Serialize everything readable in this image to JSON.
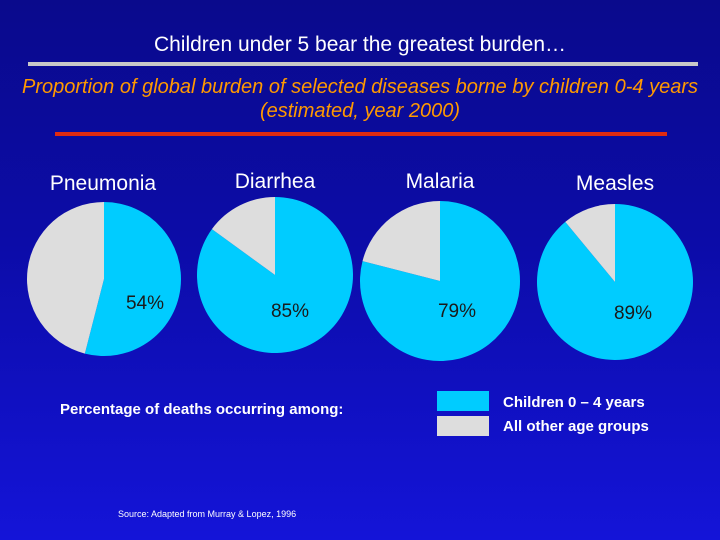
{
  "title": "Children under 5 bear the greatest burden…",
  "chart_data": {
    "type": "pie",
    "title": "Proportion of global burden of selected diseases borne by children 0-4 years (estimated, year 2000)",
    "series_names": [
      "Children 0 – 4 years",
      "All other age groups"
    ],
    "colors": {
      "children": "#00ccff",
      "other": "#dddddd"
    },
    "pies": [
      {
        "name": "Pneumonia",
        "children_pct": 54,
        "label": "54%"
      },
      {
        "name": "Diarrhea",
        "children_pct": 85,
        "label": "85%"
      },
      {
        "name": "Malaria",
        "children_pct": 79,
        "label": "79%"
      },
      {
        "name": "Measles",
        "children_pct": 89,
        "label": "89%"
      }
    ]
  },
  "legend": {
    "caption": "Percentage of deaths occurring among:",
    "items": [
      {
        "label": "Children 0 – 4 years",
        "color": "#00ccff"
      },
      {
        "label": "All other age groups",
        "color": "#dddddd"
      }
    ]
  },
  "source": "Source: Adapted from Murray & Lopez, 1996"
}
